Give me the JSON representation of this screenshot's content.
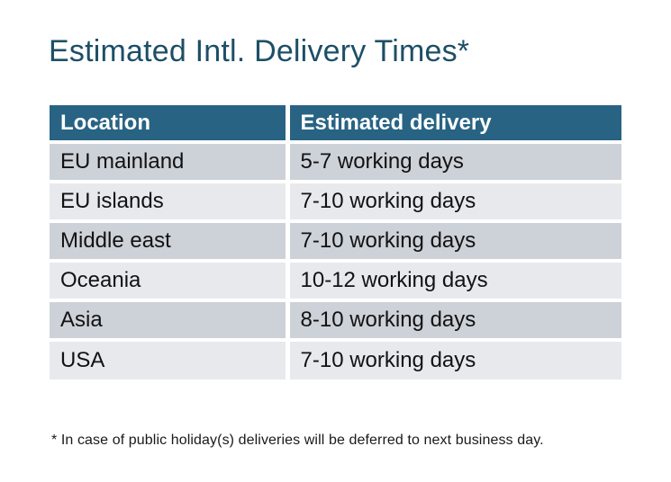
{
  "page": {
    "title": "Estimated Intl. Delivery Times*",
    "footnote": "* In case of public holiday(s) deliveries will be deferred to next business day."
  },
  "table": {
    "columns": {
      "location": "Location",
      "delivery": "Estimated delivery"
    },
    "rows": [
      {
        "location": "EU mainland",
        "delivery": "5-7 working days"
      },
      {
        "location": "EU islands",
        "delivery": "7-10 working days"
      },
      {
        "location": "Middle east",
        "delivery": "7-10 working days"
      },
      {
        "location": "Oceania",
        "delivery": "10-12 working days"
      },
      {
        "location": "Asia",
        "delivery": "8-10 working days"
      },
      {
        "location": "USA",
        "delivery": "7-10 working days"
      }
    ]
  },
  "colors": {
    "title_text": "#1d4f66",
    "header_bg": "#286383",
    "header_text": "#ffffff",
    "row_odd_bg": "#cdd1d8",
    "row_even_bg": "#e7e9ed",
    "body_text": "#121212",
    "background": "#ffffff"
  }
}
